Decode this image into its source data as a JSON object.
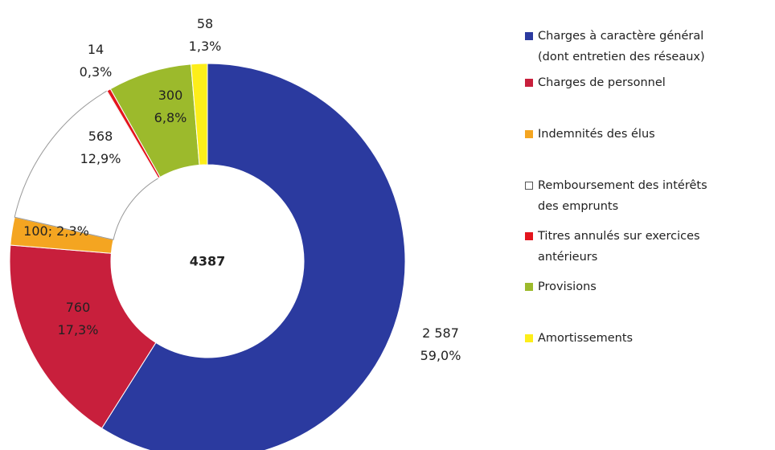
{
  "chart_data": {
    "type": "donut",
    "total": 4387,
    "categories": [
      "Charges à caractère général\n(dont entretien des réseaux)",
      "Charges de personnel",
      "Indemnités des élus",
      "Remboursement des intérêts\ndes emprunts",
      "Titres annulés sur exercices\nantérieurs",
      "Provisions",
      "Amortissements"
    ],
    "values": [
      2587,
      760,
      100,
      568,
      14,
      300,
      58
    ],
    "value_labels": [
      "2 587\n59,0%",
      "760\n17,3%",
      "100; 2,3%",
      "568\n12,9%",
      "14\n0,3%",
      "300\n6,8%",
      "58\n1,3%"
    ],
    "colors": [
      "#2b3a9f",
      "#c81f3c",
      "#f4a521",
      "#ffffff",
      "#e3151d",
      "#9cba2c",
      "#fdee1a"
    ]
  }
}
